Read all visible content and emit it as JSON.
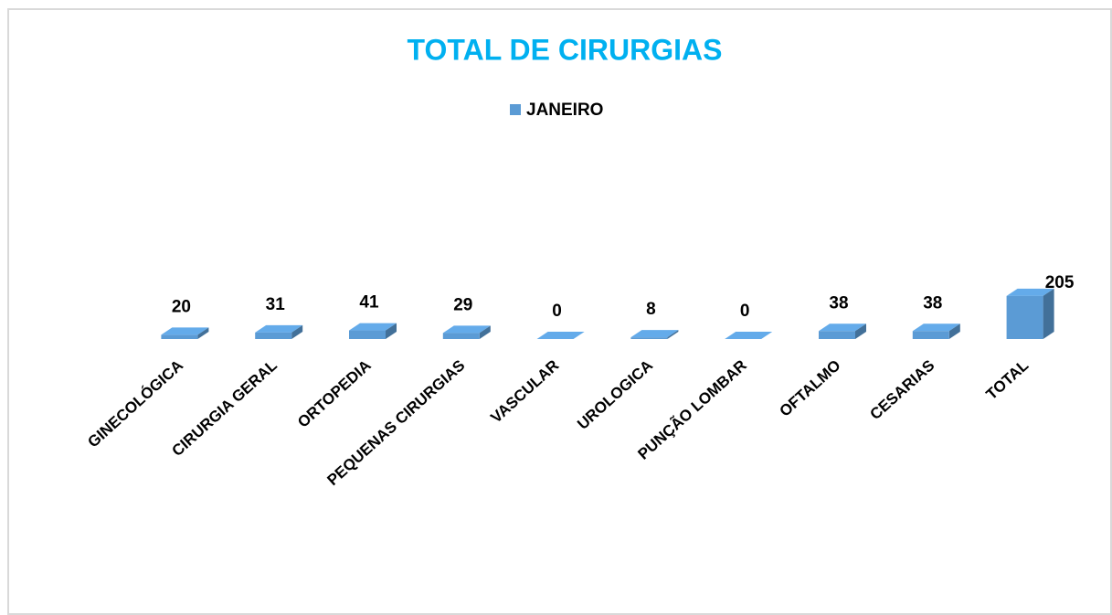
{
  "chart_data": {
    "type": "bar3d",
    "title": "TOTAL DE CIRURGIAS",
    "categories": [
      "GINECOLÓGICA",
      "CIRURGIA GERAL",
      "ORTOPEDIA",
      "PEQUENAS CIRURGIAS",
      "VASCULAR",
      "UROLOGICA",
      "PUNÇÃO LOMBAR",
      "OFTALMO",
      "CESARIAS",
      "TOTAL"
    ],
    "series": [
      {
        "name": "JANEIRO",
        "color": "#5b9bd5",
        "values": [
          20,
          31,
          41,
          29,
          0,
          8,
          0,
          38,
          38,
          205
        ]
      }
    ],
    "legend": "top"
  }
}
